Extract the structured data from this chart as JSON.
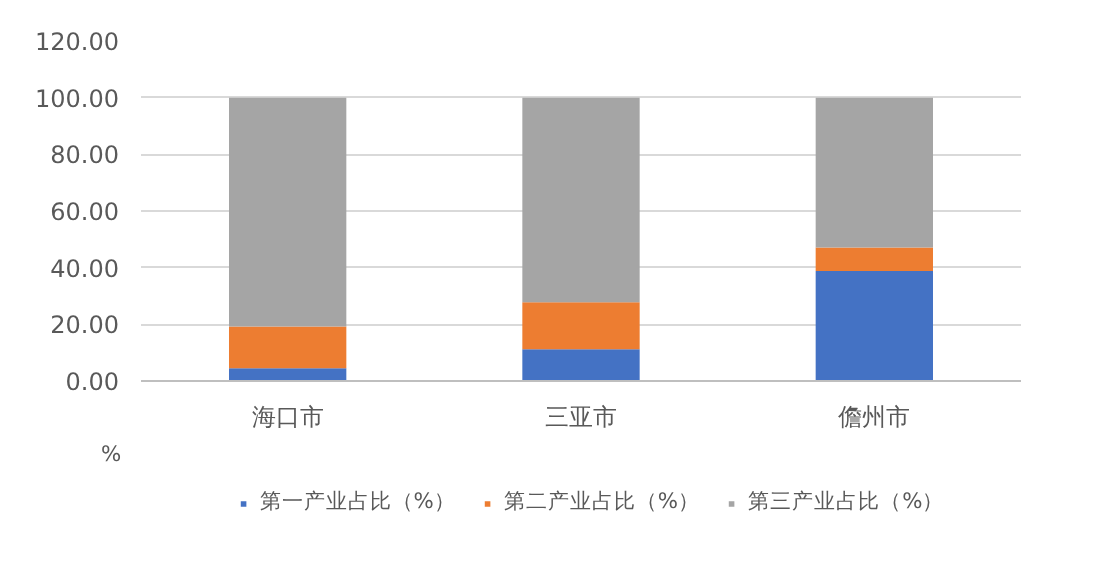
{
  "chart_data": {
    "type": "bar",
    "stacked": true,
    "categories": [
      "海口市",
      "三亚市",
      "儋州市"
    ],
    "series": [
      {
        "name": "第一产业占比（%）",
        "color": "#4472c4",
        "values": [
          4.5,
          11.2,
          38.8
        ]
      },
      {
        "name": "第二产业占比（%）",
        "color": "#ed7d31",
        "values": [
          14.7,
          16.6,
          8.3
        ]
      },
      {
        "name": "第三产业占比（%）",
        "color": "#a5a5a5",
        "values": [
          80.8,
          72.2,
          52.9
        ]
      }
    ],
    "ylim": [
      0,
      120
    ],
    "yticks": [
      {
        "value": 0,
        "label": "0.00"
      },
      {
        "value": 20,
        "label": "20.00"
      },
      {
        "value": 40,
        "label": "40.00"
      },
      {
        "value": 60,
        "label": "60.00"
      },
      {
        "value": 80,
        "label": "80.00"
      },
      {
        "value": 100,
        "label": "100.00"
      },
      {
        "value": 120,
        "label": "120.00"
      }
    ],
    "grid": "y",
    "legend": "bottom",
    "annotations": [
      "%"
    ]
  }
}
